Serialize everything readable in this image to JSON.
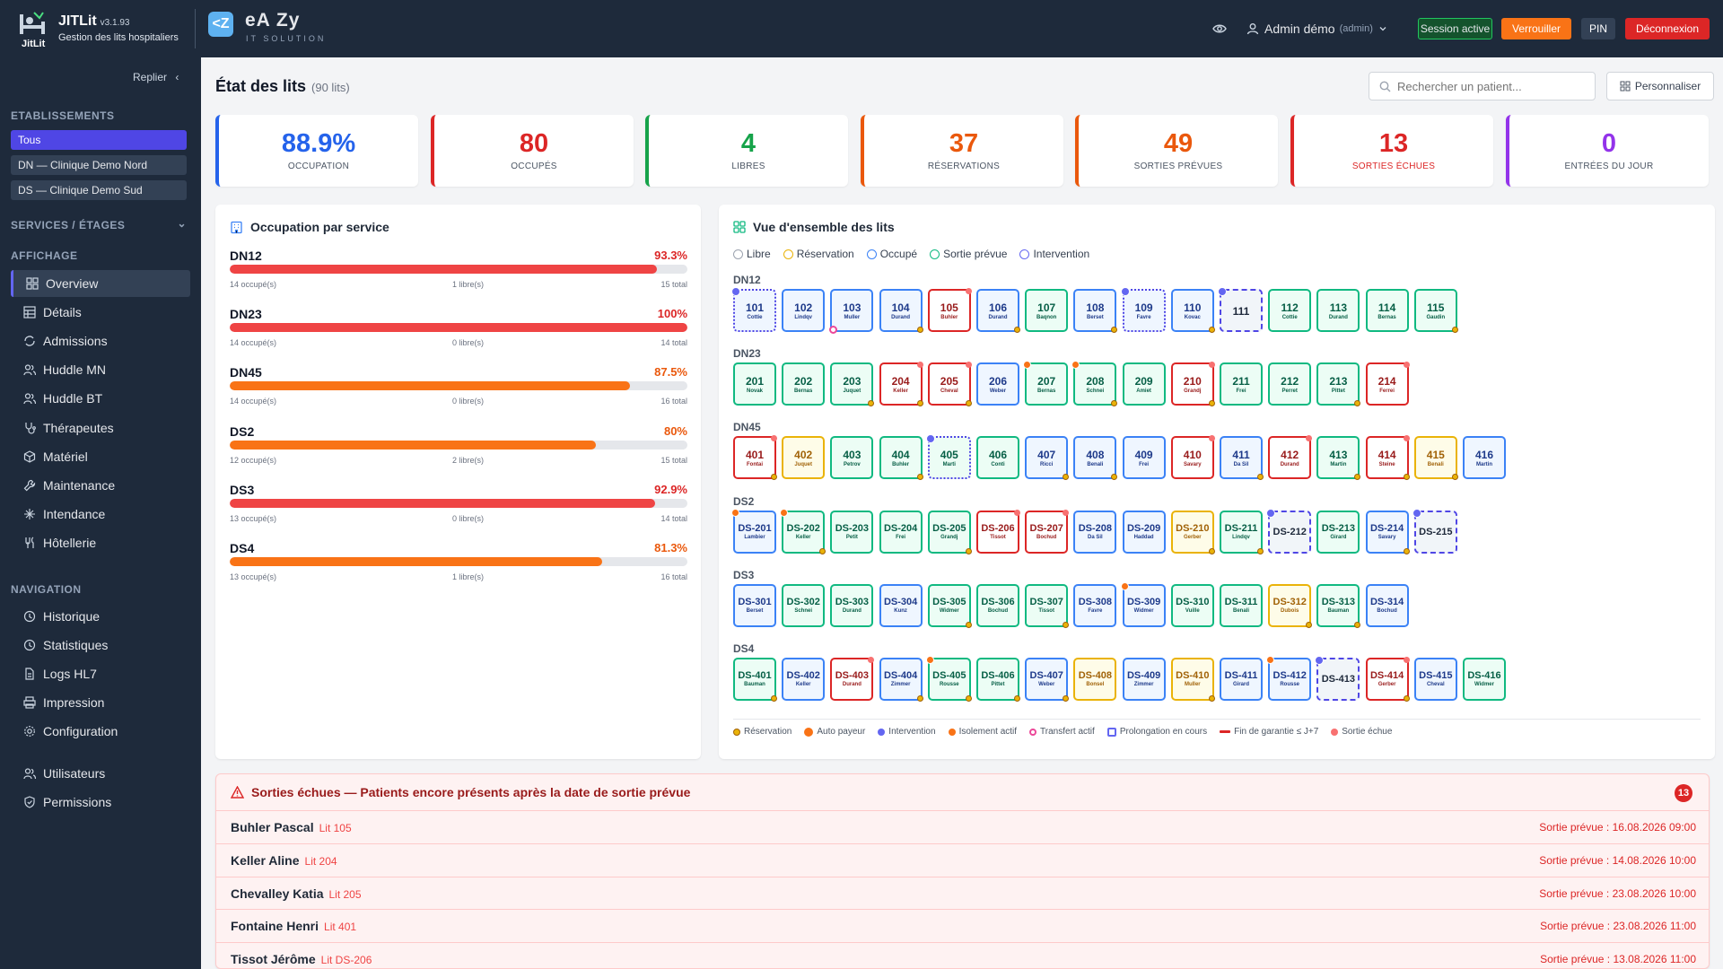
{
  "topbar": {
    "app_name": "JITLit",
    "version": "v3.1.93",
    "logo_sub": "JitLit",
    "description": "Gestion des lits hospitaliers",
    "partner_icon": "<Z",
    "partner_name": "eA Zy",
    "partner_sub": "IT SOLUTION",
    "user_name": "Admin démo",
    "user_role": "(admin)",
    "session_label": "Session active",
    "lock_label": "Verrouiller",
    "pin_label": "PIN",
    "logout_label": "Déconnexion"
  },
  "sidebar": {
    "collapse_label": "Replier",
    "establishments_title": "ETABLISSEMENTS",
    "establishments": [
      "Tous",
      "DN — Clinique Demo Nord",
      "DS — Clinique Demo Sud"
    ],
    "services_title": "SERVICES / ÉTAGES",
    "display_title": "AFFICHAGE",
    "display_items": [
      "Overview",
      "Détails",
      "Admissions",
      "Huddle MN",
      "Huddle BT",
      "Thérapeutes",
      "Matériel",
      "Maintenance",
      "Intendance",
      "Hôtellerie"
    ],
    "navigation_title": "NAVIGATION",
    "navigation_items": [
      "Historique",
      "Statistiques",
      "Logs HL7",
      "Impression",
      "Configuration"
    ],
    "admin_items": [
      "Utilisateurs",
      "Permissions"
    ]
  },
  "page": {
    "title": "État des lits",
    "count": "(90 lits)",
    "search_placeholder": "Rechercher un patient...",
    "customize_label": "Personnaliser"
  },
  "stats": [
    {
      "value": "88.9%",
      "label": "OCCUPATION",
      "color": "#2563eb"
    },
    {
      "value": "80",
      "label": "OCCUPÉS",
      "color": "#dc2626"
    },
    {
      "value": "4",
      "label": "LIBRES",
      "color": "#16a34a"
    },
    {
      "value": "37",
      "label": "RÉSERVATIONS",
      "color": "#ea580c"
    },
    {
      "value": "49",
      "label": "SORTIES PRÉVUES",
      "color": "#ea580c"
    },
    {
      "value": "13",
      "label": "SORTIES ÉCHUES",
      "color": "#dc2626"
    },
    {
      "value": "0",
      "label": "ENTRÉES DU JOUR",
      "color": "#9333ea"
    }
  ],
  "occupancy": {
    "title": "Occupation par service",
    "services": [
      {
        "name": "DN12",
        "pct": "93.3%",
        "fill": 0.933,
        "occupied": "14 occupé(s)",
        "free": "1 libre(s)",
        "total": "15 total",
        "color": "#ef4444"
      },
      {
        "name": "DN23",
        "pct": "100%",
        "fill": 1.0,
        "occupied": "14 occupé(s)",
        "free": "0 libre(s)",
        "total": "14 total",
        "color": "#ef4444"
      },
      {
        "name": "DN45",
        "pct": "87.5%",
        "fill": 0.875,
        "occupied": "14 occupé(s)",
        "free": "0 libre(s)",
        "total": "16 total",
        "color": "#f97316"
      },
      {
        "name": "DS2",
        "pct": "80%",
        "fill": 0.8,
        "occupied": "12 occupé(s)",
        "free": "2 libre(s)",
        "total": "15 total",
        "color": "#f97316"
      },
      {
        "name": "DS3",
        "pct": "92.9%",
        "fill": 0.929,
        "occupied": "13 occupé(s)",
        "free": "0 libre(s)",
        "total": "14 total",
        "color": "#ef4444"
      },
      {
        "name": "DS4",
        "pct": "81.3%",
        "fill": 0.813,
        "occupied": "13 occupé(s)",
        "free": "1 libre(s)",
        "total": "16 total",
        "color": "#f97316"
      }
    ]
  },
  "overview": {
    "title": "Vue d'ensemble des lits",
    "legend": [
      "Libre",
      "Réservation",
      "Occupé",
      "Sortie prévue",
      "Intervention"
    ],
    "groups": [
      {
        "name": "DN12",
        "beds": [
          {
            "n": "101",
            "p": "Cottie",
            "s": "occ",
            "m": [
              "inter"
            ],
            "x": "prolong"
          },
          {
            "n": "102",
            "p": "Lindqv",
            "s": "occ"
          },
          {
            "n": "103",
            "p": "Muller",
            "s": "occ",
            "m": [
              "transfer"
            ]
          },
          {
            "n": "104",
            "p": "Durand",
            "s": "occ",
            "m": [
              "res"
            ]
          },
          {
            "n": "105",
            "p": "Buhler",
            "s": "late",
            "m": [
              "late"
            ]
          },
          {
            "n": "106",
            "p": "Durand",
            "s": "occ",
            "m": [
              "res"
            ]
          },
          {
            "n": "107",
            "p": "Baqnon",
            "s": "libre"
          },
          {
            "n": "108",
            "p": "Berset",
            "s": "occ",
            "m": [
              "res"
            ]
          },
          {
            "n": "109",
            "p": "Favre",
            "s": "occ",
            "m": [
              "inter"
            ],
            "x": "prolong"
          },
          {
            "n": "110",
            "p": "Kovac",
            "s": "occ",
            "m": [
              "res"
            ]
          },
          {
            "n": "111",
            "p": "",
            "s": "inter",
            "m": [
              "inter"
            ]
          },
          {
            "n": "112",
            "p": "Cottie",
            "s": "libre"
          },
          {
            "n": "113",
            "p": "Durand",
            "s": "libre"
          },
          {
            "n": "114",
            "p": "Bernas",
            "s": "libre"
          },
          {
            "n": "115",
            "p": "Gaudin",
            "s": "libre",
            "m": [
              "res"
            ]
          }
        ]
      },
      {
        "name": "DN23",
        "beds": [
          {
            "n": "201",
            "p": "Novak",
            "s": "libre"
          },
          {
            "n": "202",
            "p": "Bernas",
            "s": "libre"
          },
          {
            "n": "203",
            "p": "Juquet",
            "s": "libre",
            "m": [
              "res"
            ]
          },
          {
            "n": "204",
            "p": "Keller",
            "s": "late",
            "m": [
              "late",
              "res"
            ]
          },
          {
            "n": "205",
            "p": "Cheval",
            "s": "late",
            "m": [
              "late",
              "res"
            ]
          },
          {
            "n": "206",
            "p": "Weber",
            "s": "occ"
          },
          {
            "n": "207",
            "p": "Bernas",
            "s": "libre",
            "m": [
              "iso"
            ]
          },
          {
            "n": "208",
            "p": "Schnei",
            "s": "libre",
            "m": [
              "iso",
              "res"
            ]
          },
          {
            "n": "209",
            "p": "Amiet",
            "s": "libre"
          },
          {
            "n": "210",
            "p": "Grandj",
            "s": "late",
            "m": [
              "late",
              "res"
            ]
          },
          {
            "n": "211",
            "p": "Frei",
            "s": "libre"
          },
          {
            "n": "212",
            "p": "Perret",
            "s": "libre"
          },
          {
            "n": "213",
            "p": "Pittet",
            "s": "libre",
            "m": [
              "res"
            ]
          },
          {
            "n": "214",
            "p": "Ferrei",
            "s": "late",
            "m": [
              "late"
            ]
          }
        ]
      },
      {
        "name": "DN45",
        "beds": [
          {
            "n": "401",
            "p": "Fontai",
            "s": "late",
            "m": [
              "late",
              "res"
            ]
          },
          {
            "n": "402",
            "p": "Juquet",
            "s": "res"
          },
          {
            "n": "403",
            "p": "Petrov",
            "s": "libre"
          },
          {
            "n": "404",
            "p": "Buhler",
            "s": "libre",
            "m": [
              "res"
            ]
          },
          {
            "n": "405",
            "p": "Marti",
            "s": "libre",
            "m": [
              "inter"
            ],
            "x": "prolong"
          },
          {
            "n": "406",
            "p": "Conti",
            "s": "libre"
          },
          {
            "n": "407",
            "p": "Ricci",
            "s": "occ",
            "m": [
              "res"
            ]
          },
          {
            "n": "408",
            "p": "Benali",
            "s": "occ",
            "m": [
              "res"
            ]
          },
          {
            "n": "409",
            "p": "Frei",
            "s": "occ"
          },
          {
            "n": "410",
            "p": "Savary",
            "s": "late",
            "m": [
              "late"
            ]
          },
          {
            "n": "411",
            "p": "Da Sil",
            "s": "occ",
            "m": [
              "res"
            ]
          },
          {
            "n": "412",
            "p": "Durand",
            "s": "late",
            "m": [
              "late"
            ]
          },
          {
            "n": "413",
            "p": "Martin",
            "s": "libre",
            "m": [
              "res"
            ]
          },
          {
            "n": "414",
            "p": "Steine",
            "s": "late",
            "m": [
              "late",
              "res"
            ]
          },
          {
            "n": "415",
            "p": "Benali",
            "s": "res",
            "m": [
              "res"
            ]
          },
          {
            "n": "416",
            "p": "Martin",
            "s": "occ"
          }
        ]
      },
      {
        "name": "DS2",
        "beds": [
          {
            "n": "DS-201",
            "p": "Lambier",
            "s": "occ",
            "m": [
              "iso"
            ]
          },
          {
            "n": "DS-202",
            "p": "Keller",
            "s": "libre",
            "m": [
              "iso",
              "res"
            ]
          },
          {
            "n": "DS-203",
            "p": "Petit",
            "s": "libre"
          },
          {
            "n": "DS-204",
            "p": "Frei",
            "s": "libre"
          },
          {
            "n": "DS-205",
            "p": "Grandj",
            "s": "libre",
            "m": [
              "res"
            ]
          },
          {
            "n": "DS-206",
            "p": "Tissot",
            "s": "late",
            "m": [
              "late"
            ]
          },
          {
            "n": "DS-207",
            "p": "Bochud",
            "s": "late",
            "m": [
              "late"
            ]
          },
          {
            "n": "DS-208",
            "p": "Da Sil",
            "s": "occ"
          },
          {
            "n": "DS-209",
            "p": "Haddad",
            "s": "occ"
          },
          {
            "n": "DS-210",
            "p": "Gerber",
            "s": "res",
            "m": [
              "res"
            ]
          },
          {
            "n": "DS-211",
            "p": "Lindqv",
            "s": "libre",
            "m": [
              "res"
            ]
          },
          {
            "n": "DS-212",
            "p": "",
            "s": "inter",
            "m": [
              "inter"
            ]
          },
          {
            "n": "DS-213",
            "p": "Girard",
            "s": "libre"
          },
          {
            "n": "DS-214",
            "p": "Savary",
            "s": "occ",
            "m": [
              "res"
            ]
          },
          {
            "n": "DS-215",
            "p": "",
            "s": "inter",
            "m": [
              "inter"
            ]
          }
        ]
      },
      {
        "name": "DS3",
        "beds": [
          {
            "n": "DS-301",
            "p": "Berset",
            "s": "occ"
          },
          {
            "n": "DS-302",
            "p": "Schnei",
            "s": "libre"
          },
          {
            "n": "DS-303",
            "p": "Durand",
            "s": "libre"
          },
          {
            "n": "DS-304",
            "p": "Kunz",
            "s": "occ"
          },
          {
            "n": "DS-305",
            "p": "Widmer",
            "s": "libre",
            "m": [
              "res"
            ]
          },
          {
            "n": "DS-306",
            "p": "Bochud",
            "s": "libre"
          },
          {
            "n": "DS-307",
            "p": "Tissot",
            "s": "libre",
            "m": [
              "res"
            ]
          },
          {
            "n": "DS-308",
            "p": "Favre",
            "s": "occ"
          },
          {
            "n": "DS-309",
            "p": "Widmer",
            "s": "occ",
            "m": [
              "iso"
            ]
          },
          {
            "n": "DS-310",
            "p": "Vuille",
            "s": "libre"
          },
          {
            "n": "DS-311",
            "p": "Benali",
            "s": "libre"
          },
          {
            "n": "DS-312",
            "p": "Dubois",
            "s": "res",
            "m": [
              "res"
            ]
          },
          {
            "n": "DS-313",
            "p": "Bauman",
            "s": "libre",
            "m": [
              "res"
            ]
          },
          {
            "n": "DS-314",
            "p": "Bochud",
            "s": "occ"
          }
        ]
      },
      {
        "name": "DS4",
        "beds": [
          {
            "n": "DS-401",
            "p": "Bauman",
            "s": "libre",
            "m": [
              "res"
            ]
          },
          {
            "n": "DS-402",
            "p": "Keller",
            "s": "occ"
          },
          {
            "n": "DS-403",
            "p": "Durand",
            "s": "late",
            "m": [
              "late"
            ]
          },
          {
            "n": "DS-404",
            "p": "Zimmer",
            "s": "occ",
            "m": [
              "res"
            ]
          },
          {
            "n": "DS-405",
            "p": "Rousse",
            "s": "libre",
            "m": [
              "iso",
              "res"
            ]
          },
          {
            "n": "DS-406",
            "p": "Pittet",
            "s": "libre",
            "m": [
              "res"
            ]
          },
          {
            "n": "DS-407",
            "p": "Weber",
            "s": "occ",
            "m": [
              "res"
            ]
          },
          {
            "n": "DS-408",
            "p": "Bonsel",
            "s": "res"
          },
          {
            "n": "DS-409",
            "p": "Zimmer",
            "s": "occ"
          },
          {
            "n": "DS-410",
            "p": "Muller",
            "s": "res",
            "m": [
              "res"
            ]
          },
          {
            "n": "DS-411",
            "p": "Girard",
            "s": "occ"
          },
          {
            "n": "DS-412",
            "p": "Rousse",
            "s": "occ",
            "m": [
              "iso"
            ]
          },
          {
            "n": "DS-413",
            "p": "",
            "s": "inter",
            "m": [
              "inter"
            ]
          },
          {
            "n": "DS-414",
            "p": "Gerber",
            "s": "late",
            "m": [
              "late",
              "res"
            ]
          },
          {
            "n": "DS-415",
            "p": "Cheval",
            "s": "occ"
          },
          {
            "n": "DS-416",
            "p": "Widmer",
            "s": "libre"
          }
        ]
      }
    ],
    "bottom_legend": [
      "Réservation",
      "Auto payeur",
      "Intervention",
      "Isolement actif",
      "Transfert actif",
      "Prolongation en cours",
      "Fin de garantie ≤ J+7",
      "Sortie échue"
    ]
  },
  "overdue": {
    "title": "Sorties échues — Patients encore présents après la date de sortie prévue",
    "count": "13",
    "rows": [
      {
        "name": "Buhler Pascal",
        "bed": "Lit 105",
        "date": "Sortie prévue : 16.08.2026 09:00"
      },
      {
        "name": "Keller Aline",
        "bed": "Lit 204",
        "date": "Sortie prévue : 14.08.2026 10:00"
      },
      {
        "name": "Chevalley Katia",
        "bed": "Lit 205",
        "date": "Sortie prévue : 23.08.2026 10:00"
      },
      {
        "name": "Fontaine Henri",
        "bed": "Lit 401",
        "date": "Sortie prévue : 23.08.2026 11:00"
      },
      {
        "name": "Tissot Jérôme",
        "bed": "Lit DS-206",
        "date": "Sortie prévue : 13.08.2026 11:00"
      }
    ]
  },
  "colors": {
    "sidebar": "#1e2a3b",
    "accent": "#4f46e5",
    "libre": "#10b981",
    "occupe": "#3b82f6",
    "reservation": "#eab308",
    "late": "#dc2626"
  }
}
